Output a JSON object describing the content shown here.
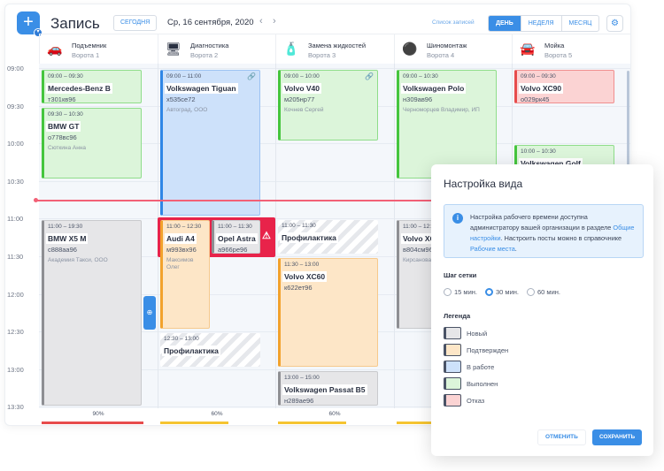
{
  "header": {
    "title": "Запись",
    "today": "Сегодня",
    "date": "Ср, 16 сентября, 2020",
    "prev": "‹",
    "next": "›",
    "list_link": "Список записей",
    "views": [
      "День",
      "Неделя",
      "Месяц"
    ],
    "active_view": "День"
  },
  "columns": [
    {
      "name": "Подъемник",
      "sub": "Ворота 1",
      "icon": "car-lift-icon",
      "glyph": "🚗",
      "load": "90%",
      "load_color": "#e74c4c"
    },
    {
      "name": "Диагностика",
      "sub": "Ворота 2",
      "icon": "diagnostics-monitor-icon",
      "glyph": "🖥",
      "load": "60%",
      "load_color": "#f5c431"
    },
    {
      "name": "Замена жидкостей",
      "sub": "Ворота 3",
      "icon": "oil-bottle-icon",
      "glyph": "🧴",
      "load": "60%",
      "load_color": "#f5c431"
    },
    {
      "name": "Шиномонтаж",
      "sub": "Ворота 4",
      "icon": "tire-icon",
      "glyph": "⚫",
      "load": "",
      "load_color": "#f5c431"
    },
    {
      "name": "Мойка",
      "sub": "Ворота 5",
      "icon": "car-wash-icon",
      "glyph": "🚘",
      "load": "",
      "load_color": ""
    }
  ],
  "times": [
    "09:00",
    "09:30",
    "10:00",
    "10:30",
    "11:00",
    "11:30",
    "12:00",
    "12:30",
    "13:00",
    "13:30"
  ],
  "events": [
    {
      "col": 0,
      "time": "09:00 – 09:30",
      "model": "Mercedes-Benz B",
      "plate": "т301кв96",
      "client": "",
      "status": "done",
      "start": "09:00",
      "end": "09:30"
    },
    {
      "col": 0,
      "time": "09:30 – 10:30",
      "model": "BMW GT",
      "plate": "о778вс96",
      "client": "Сюткина Анна",
      "status": "done",
      "start": "09:30",
      "end": "10:30"
    },
    {
      "col": 0,
      "time": "11:00 – 19:30",
      "model": "BMW X5 M",
      "plate": "с888аа96",
      "client": "Академия Такси, ООО",
      "status": "new",
      "start": "11:00",
      "end": "19:30"
    },
    {
      "col": 1,
      "time": "09:00 – 11:00",
      "model": "Volkswagen Tiguan",
      "plate": "х535се72",
      "client": "Автоград, ООО",
      "status": "work",
      "start": "09:00",
      "end": "11:00",
      "link": true
    },
    {
      "col": 1,
      "time": "11:00 – 12:30",
      "model": "Audi A4",
      "plate": "м993вх96",
      "client": "Максимов Олег",
      "status": "conf",
      "start": "11:00",
      "end": "12:30",
      "half": 0
    },
    {
      "col": 1,
      "time": "11:00 – 11:30",
      "model": "Opel Astra",
      "plate": "а966ре96",
      "client": "",
      "status": "new",
      "start": "11:00",
      "end": "11:30",
      "half": 1
    },
    {
      "col": 1,
      "time": "12:30 – 13:00",
      "model": "Профилактика",
      "plate": "",
      "client": "",
      "status": "hatch",
      "start": "12:30",
      "end": "13:00"
    },
    {
      "col": 2,
      "time": "09:00 – 10:00",
      "model": "Volvo V40",
      "plate": "м205нр77",
      "client": "Кочнев Сергей",
      "status": "done",
      "start": "09:00",
      "end": "10:00",
      "link": true
    },
    {
      "col": 2,
      "time": "11:00 – 11:30",
      "model": "Профилактика",
      "plate": "",
      "client": "",
      "status": "hatch",
      "start": "11:00",
      "end": "11:30"
    },
    {
      "col": 2,
      "time": "11:30 – 13:00",
      "model": "Volvo XC60",
      "plate": "к622ет96",
      "client": "",
      "status": "conf",
      "start": "11:30",
      "end": "13:00"
    },
    {
      "col": 2,
      "time": "13:00 – 15:00",
      "model": "Volkswagen Passat B5",
      "plate": "н289ае96",
      "client": "",
      "status": "new",
      "start": "13:00",
      "end": "15:00"
    },
    {
      "col": 3,
      "time": "09:00 – 10:30",
      "model": "Volkswagen Polo",
      "plate": "н309ав96",
      "client": "Черноморцев Владимир, ИП",
      "status": "done",
      "start": "09:00",
      "end": "10:30"
    },
    {
      "col": 3,
      "time": "11:00 – 12:30",
      "model": "Volvo XC",
      "plate": "в804см96",
      "client": "Кирсанова",
      "status": "new",
      "start": "11:00",
      "end": "12:30"
    },
    {
      "col": 4,
      "time": "09:00 – 09:30",
      "model": "Volvo XC90",
      "plate": "о029рк45",
      "client": "",
      "status": "ref",
      "start": "09:00",
      "end": "09:30"
    },
    {
      "col": 4,
      "time": "10:00 – 10:30",
      "model": "Volkswagen Golf",
      "plate": "",
      "client": "",
      "status": "done",
      "start": "10:00",
      "end": "10:30"
    }
  ],
  "conflict_icon": "warning-icon",
  "dialog": {
    "title": "Настройка вида",
    "info_1": "Настройка рабочего времени доступна администратору вашей организации в разделе ",
    "info_link_1": "Общие настройки",
    "info_2": ". Настроить посты можно в справочнике ",
    "info_link_2": "Рабочие места",
    "info_3": ".",
    "grid_step_label": "Шаг сетки",
    "grid_steps": [
      "15 мин.",
      "30 мин.",
      "60 мин."
    ],
    "grid_step_selected": "30 мин.",
    "legend_label": "Легенда",
    "legend": [
      {
        "label": "Новый",
        "status": "new"
      },
      {
        "label": "Подтвержден",
        "status": "conf"
      },
      {
        "label": "В работе",
        "status": "work"
      },
      {
        "label": "Выполнен",
        "status": "done"
      },
      {
        "label": "Отказ",
        "status": "ref"
      }
    ],
    "cancel": "Отменить",
    "save": "Сохранить"
  },
  "colors": {
    "accent": "#3a8ee6",
    "now_line": "#f26076",
    "conflict": "#e8234a"
  }
}
